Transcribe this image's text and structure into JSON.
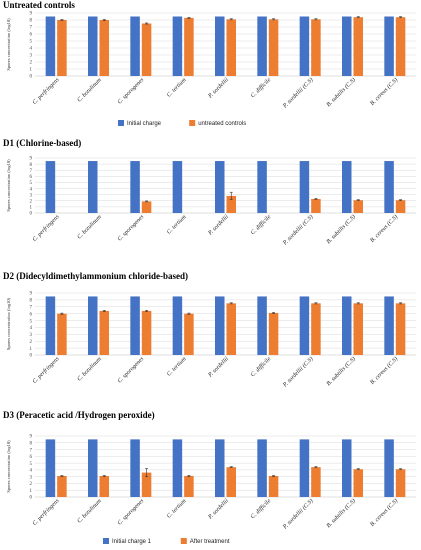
{
  "colors": {
    "initial": "#4472C4",
    "after": "#ED7D31",
    "grid": "#d9d9d9",
    "axis": "#bfbfbf",
    "err": "#333333"
  },
  "chart_data": [
    {
      "type": "bar",
      "title": "Untreated controls",
      "ylabel": "Spores concentration (log10)",
      "ylim": [
        0,
        9
      ],
      "yticks": [
        "0",
        "1",
        "2",
        "3",
        "4",
        "5",
        "6",
        "7",
        "8",
        "9"
      ],
      "categories": [
        "C. perfringens",
        "C. botulinum",
        "C. sporogenes",
        "C. tertium",
        "P. sordellii",
        "C. difficile",
        "P. sordellii (C.S)",
        "B. subtilis (C.S)",
        "B. cereus (C.S)"
      ],
      "series": [
        {
          "name": "Initial charge",
          "values": [
            8.5,
            8.5,
            8.5,
            8.5,
            8.5,
            8.5,
            8.5,
            8.5,
            8.5
          ]
        },
        {
          "name": "untreated controls",
          "values": [
            8.0,
            8.0,
            7.5,
            8.3,
            8.1,
            8.1,
            8.1,
            8.4,
            8.4
          ]
        }
      ],
      "errors": [
        0,
        0,
        0,
        0,
        0,
        0,
        0,
        0,
        0
      ],
      "legend": "bottom"
    },
    {
      "type": "bar",
      "title": "D1 (Chlorine-based)",
      "ylabel": "Spores concentration (log10)",
      "ylim": [
        0,
        9
      ],
      "yticks": [
        "0",
        "1",
        "2",
        "3",
        "4",
        "5",
        "6",
        "7",
        "8",
        "9"
      ],
      "categories": [
        "C. perfringens",
        "C. botulinum",
        "C. sporogenes",
        "C. tertium",
        "P. sordellii",
        "C. difficile",
        "P. sordellii (C.S)",
        "B. subtilis (C.S)",
        "B. cereus (C.S)"
      ],
      "series": [
        {
          "values": [
            8.5,
            8.5,
            8.5,
            8.5,
            8.5,
            8.5,
            8.5,
            8.5,
            8.5
          ]
        },
        {
          "values": [
            0,
            0,
            1.9,
            0,
            2.8,
            0,
            2.3,
            2.1,
            2.1
          ]
        }
      ],
      "errors": [
        0,
        0,
        0,
        0,
        0.6,
        0,
        0,
        0,
        0
      ]
    },
    {
      "type": "bar",
      "title": "D2 (Didecyldimethylammonium chloride-based)",
      "ylabel": "Spores concentration (log10)",
      "ylim": [
        0,
        9
      ],
      "yticks": [
        "0",
        "1",
        "2",
        "3",
        "4",
        "5",
        "6",
        "7",
        "8",
        "9"
      ],
      "categories": [
        "C. perfringens",
        "C. botulinum",
        "C. sporogenes",
        "C. tertium",
        "P. sordellii",
        "C. difficile",
        "P. sordellii (C.S)",
        "B. subtilis (C.S)",
        "B. cereus (C.S)"
      ],
      "series": [
        {
          "values": [
            8.5,
            8.5,
            8.5,
            8.5,
            8.5,
            8.5,
            8.5,
            8.5,
            8.5
          ]
        },
        {
          "values": [
            6.0,
            6.4,
            6.4,
            6.0,
            7.5,
            6.1,
            7.5,
            7.5,
            7.5
          ]
        }
      ],
      "errors": [
        0,
        0,
        0,
        0,
        0,
        0,
        0,
        0,
        0
      ]
    },
    {
      "type": "bar",
      "title": "D3 (Peracetic acid /Hydrogen peroxide)",
      "ylabel": "Spores concentration (log10)",
      "ylim": [
        0,
        9
      ],
      "yticks": [
        "0",
        "1",
        "2",
        "3",
        "4",
        "5",
        "6",
        "7",
        "8",
        "9"
      ],
      "categories": [
        "C. perfringens",
        "C. botulinum",
        "C. sporogenes",
        "C. tertium",
        "P. sordellii",
        "C. difficile",
        "P. sordellii (C.S)",
        "B. subtilis (C.S)",
        "B. cereus (C.S)"
      ],
      "series": [
        {
          "name": "Initial charge 1",
          "values": [
            8.5,
            8.5,
            8.5,
            8.5,
            8.5,
            8.5,
            8.5,
            8.5,
            8.5
          ]
        },
        {
          "name": "After treatment",
          "values": [
            3.1,
            3.1,
            3.6,
            3.1,
            4.4,
            3.1,
            4.4,
            4.1,
            4.1
          ]
        }
      ],
      "errors": [
        0,
        0,
        0.6,
        0,
        0,
        0,
        0,
        0,
        0
      ],
      "legend": "bottom"
    }
  ]
}
